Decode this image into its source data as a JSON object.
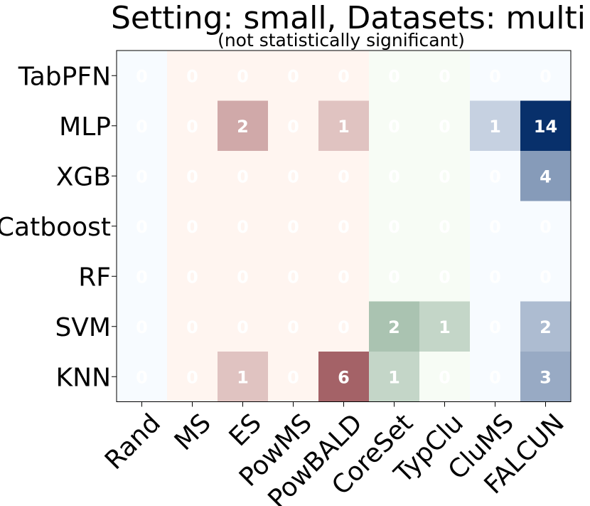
{
  "chart_data": {
    "type": "heatmap",
    "title": "Setting: small, Datasets: multi",
    "subtitle": "(not statistically significant)",
    "rows": [
      "TabPFN",
      "MLP",
      "XGB",
      "Catboost",
      "RF",
      "SVM",
      "KNN"
    ],
    "columns": [
      "Rand",
      "MS",
      "ES",
      "PowMS",
      "PowBALD",
      "CoreSet",
      "TypClu",
      "CluMS",
      "FALCUN"
    ],
    "column_groups": [
      "blue",
      "red",
      "red",
      "red",
      "red",
      "green",
      "green",
      "blue",
      "blue"
    ],
    "values": [
      [
        0,
        0,
        0,
        0,
        0,
        0,
        0,
        0,
        0
      ],
      [
        0,
        0,
        2,
        0,
        1,
        0,
        0,
        1,
        14
      ],
      [
        0,
        0,
        0,
        0,
        0,
        0,
        0,
        0,
        4
      ],
      [
        0,
        0,
        0,
        0,
        0,
        0,
        0,
        0,
        0
      ],
      [
        0,
        0,
        0,
        0,
        0,
        0,
        0,
        0,
        0
      ],
      [
        0,
        0,
        0,
        0,
        0,
        2,
        1,
        0,
        2
      ],
      [
        0,
        0,
        1,
        0,
        6,
        1,
        0,
        0,
        3
      ]
    ],
    "colormaps": {
      "blue": [
        "#f7fbff",
        "#08306b"
      ],
      "red": [
        "#fff5f0",
        "#67000d"
      ],
      "green": [
        "#f7fcf5",
        "#00441b"
      ]
    },
    "vmax": 14,
    "grid": false
  }
}
